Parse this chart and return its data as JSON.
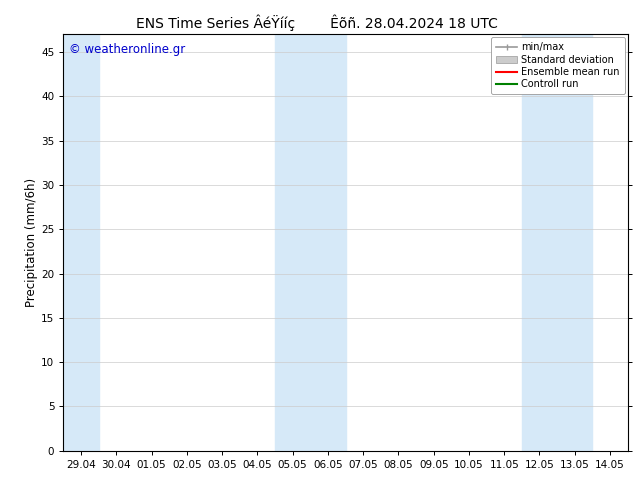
{
  "title": "ENS Time Series ÂéŸííç        Êõñ. 28.04.2024 18 UTC",
  "ylabel": "Precipitation (mm/6h)",
  "ylim": [
    0,
    47
  ],
  "yticks": [
    0,
    5,
    10,
    15,
    20,
    25,
    30,
    35,
    40,
    45
  ],
  "xtick_labels": [
    "29.04",
    "30.04",
    "01.05",
    "02.05",
    "03.05",
    "04.05",
    "05.05",
    "06.05",
    "07.05",
    "08.05",
    "09.05",
    "10.05",
    "11.05",
    "12.05",
    "13.05",
    "14.05"
  ],
  "watermark": "© weatheronline.gr",
  "watermark_color": "#0000cc",
  "bg_color": "#ffffff",
  "plot_bg_color": "#ffffff",
  "shaded_color": "#d6e9f8",
  "shaded_regions": [
    {
      "xstart": -0.5,
      "xend": 0.5
    },
    {
      "xstart": 5.5,
      "xend": 6.5
    },
    {
      "xstart": 6.5,
      "xend": 7.5
    },
    {
      "xstart": 12.5,
      "xend": 13.5
    },
    {
      "xstart": 13.5,
      "xend": 14.5
    }
  ],
  "legend_items": [
    {
      "label": "min/max",
      "color": "#999999",
      "lw": 1.2,
      "ls": "-",
      "type": "line_bar"
    },
    {
      "label": "Standard deviation",
      "color": "#cccccc",
      "lw": 6,
      "ls": "-",
      "type": "patch"
    },
    {
      "label": "Ensemble mean run",
      "color": "#ff0000",
      "lw": 1.5,
      "ls": "-",
      "type": "line"
    },
    {
      "label": "Controll run",
      "color": "#008000",
      "lw": 1.5,
      "ls": "-",
      "type": "line"
    }
  ],
  "title_fontsize": 10,
  "tick_fontsize": 7.5,
  "ylabel_fontsize": 8.5,
  "grid_color": "#cccccc",
  "border_color": "#000000"
}
